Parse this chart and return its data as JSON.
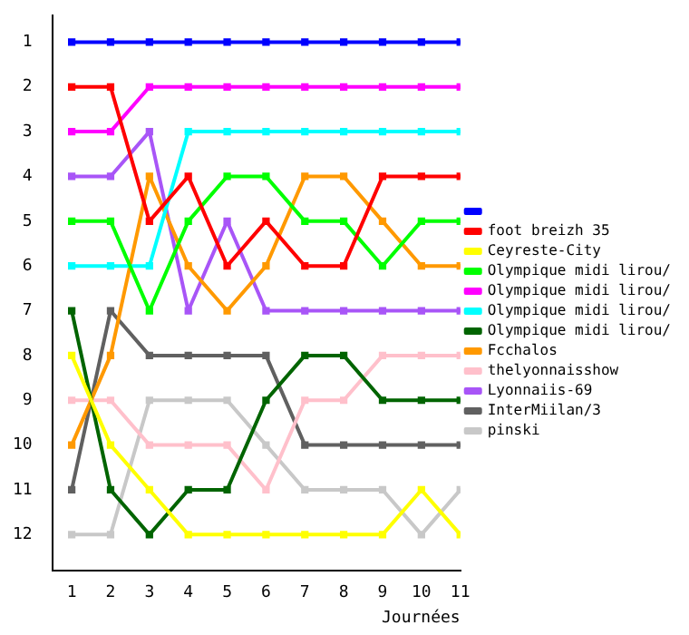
{
  "chart_data": {
    "type": "line",
    "xlabel": "Journées",
    "x": [
      1,
      2,
      3,
      4,
      5,
      6,
      7,
      8,
      9,
      10,
      11
    ],
    "xlim": [
      0.5,
      11
    ],
    "xticks": [
      1,
      2,
      3,
      4,
      5,
      6,
      7,
      8,
      9,
      10,
      11
    ],
    "ylim": [
      12.8,
      0.4
    ],
    "yticks": [
      1,
      2,
      3,
      4,
      5,
      6,
      7,
      8,
      9,
      10,
      11,
      12
    ],
    "grid": false,
    "legend": "right",
    "marker": "square",
    "line_style": "solid",
    "series": [
      {
        "color": "#0000ff",
        "values": [
          1,
          1,
          1,
          1,
          1,
          1,
          1,
          1,
          1,
          1,
          1
        ]
      },
      {
        "name": "foot breizh 35",
        "color": "#ff0000",
        "values": [
          2,
          2,
          5,
          4,
          6,
          5,
          6,
          6,
          4,
          4,
          4
        ]
      },
      {
        "name": "Ceyreste-City",
        "color": "#ffff00",
        "values": [
          8,
          10,
          11,
          12,
          12,
          12,
          12,
          12,
          12,
          11,
          12
        ]
      },
      {
        "name": "Olympique midi lirou/",
        "color": "#00ff00",
        "values": [
          5,
          5,
          7,
          5,
          4,
          4,
          5,
          5,
          6,
          5,
          5
        ]
      },
      {
        "name": "Olympique midi lirou/",
        "color": "#ff00ff",
        "values": [
          3,
          3,
          2,
          2,
          2,
          2,
          2,
          2,
          2,
          2,
          2
        ]
      },
      {
        "name": "Olympique midi lirou/",
        "color": "#00ffff",
        "values": [
          6,
          6,
          6,
          3,
          3,
          3,
          3,
          3,
          3,
          3,
          3
        ]
      },
      {
        "name": "Olympique midi lirou/",
        "color": "#006400",
        "values": [
          7,
          11,
          12,
          11,
          11,
          9,
          8,
          8,
          9,
          9,
          9
        ]
      },
      {
        "name": "Fcchalos",
        "color": "#ff9900",
        "values": [
          10,
          8,
          4,
          6,
          7,
          6,
          4,
          4,
          5,
          6,
          6
        ]
      },
      {
        "name": "thelyonnaisshow",
        "color": "#ffc0cb",
        "values": [
          9,
          9,
          10,
          10,
          10,
          11,
          9,
          9,
          8,
          8,
          8
        ]
      },
      {
        "name": "Lyonnaiis-69",
        "color": "#a855f7",
        "values": [
          4,
          4,
          3,
          7,
          5,
          7,
          7,
          7,
          7,
          7,
          7
        ]
      },
      {
        "name": "InterMiilan/3",
        "color": "#606060",
        "values": [
          11,
          7,
          8,
          8,
          8,
          8,
          10,
          10,
          10,
          10,
          10
        ]
      },
      {
        "name": "pinski",
        "color": "#c8c8c8",
        "values": [
          12,
          12,
          9,
          9,
          9,
          10,
          11,
          11,
          11,
          12,
          11
        ]
      }
    ]
  }
}
